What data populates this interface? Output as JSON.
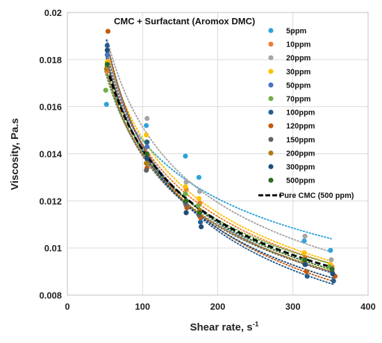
{
  "chart_data": {
    "type": "scatter",
    "title": "CMC + Surfactant (Aromox DMC)",
    "xlabel": "Shear rate, s",
    "xlabel_sup": "-1",
    "ylabel": "Viscosity, Pa.s",
    "xlim": [
      0,
      400
    ],
    "ylim": [
      0.008,
      0.02
    ],
    "x_ticks": [
      "0",
      "100",
      "200",
      "300",
      "400"
    ],
    "y_ticks": [
      "0.008",
      "0.01",
      "0.012",
      "0.014",
      "0.016",
      "0.018",
      "0.02"
    ],
    "grid": true,
    "legend_position": "right",
    "trendline": "dotted power fit per series",
    "series": [
      {
        "name": "5ppm",
        "color": "#2ea3d9",
        "x": [
          52,
          105,
          157,
          175,
          315,
          350
        ],
        "y": [
          0.0161,
          0.0152,
          0.0139,
          0.013,
          0.0103,
          0.0099
        ]
      },
      {
        "name": "10ppm",
        "color": "#ed7d31",
        "x": [
          53,
          106,
          158,
          176,
          316,
          352
        ],
        "y": [
          0.0175,
          0.0145,
          0.0125,
          0.0119,
          0.0096,
          0.0092
        ]
      },
      {
        "name": "20ppm",
        "color": "#a5a5a5",
        "x": [
          54,
          106,
          158,
          176,
          316,
          351
        ],
        "y": [
          0.0183,
          0.0155,
          0.0128,
          0.0124,
          0.0105,
          0.0095
        ]
      },
      {
        "name": "30ppm",
        "color": "#ffc000",
        "x": [
          53,
          105,
          157,
          175,
          315,
          350
        ],
        "y": [
          0.0179,
          0.0148,
          0.0126,
          0.0121,
          0.0098,
          0.0093
        ]
      },
      {
        "name": "50ppm",
        "color": "#4472c4",
        "x": [
          53,
          106,
          158,
          176,
          317,
          352
        ],
        "y": [
          0.0182,
          0.0143,
          0.0118,
          0.0116,
          0.0093,
          0.009
        ]
      },
      {
        "name": "70ppm",
        "color": "#70ad47",
        "x": [
          51,
          105,
          157,
          174,
          314,
          349
        ],
        "y": [
          0.0167,
          0.0145,
          0.0123,
          0.0118,
          0.0095,
          0.0092
        ]
      },
      {
        "name": "100ppm",
        "color": "#255e91",
        "x": [
          53,
          106,
          158,
          177,
          319,
          354
        ],
        "y": [
          0.0186,
          0.0145,
          0.0115,
          0.0111,
          0.0088,
          0.0086
        ]
      },
      {
        "name": "120ppm",
        "color": "#c55a11",
        "x": [
          54,
          106,
          159,
          177,
          318,
          356
        ],
        "y": [
          0.0192,
          0.0134,
          0.0117,
          0.0113,
          0.009,
          0.0088
        ]
      },
      {
        "name": "150ppm",
        "color": "#636363",
        "x": [
          53,
          105,
          157,
          175,
          316,
          352
        ],
        "y": [
          0.0177,
          0.0133,
          0.0119,
          0.0114,
          0.0094,
          0.009
        ]
      },
      {
        "name": "200ppm",
        "color": "#b07d12",
        "x": [
          52,
          105,
          158,
          176,
          316,
          353
        ],
        "y": [
          0.0176,
          0.0136,
          0.012,
          0.0116,
          0.0094,
          0.0089
        ]
      },
      {
        "name": "300ppm",
        "color": "#1f4e79",
        "x": [
          53,
          106,
          158,
          178,
          316,
          353
        ],
        "y": [
          0.0184,
          0.0138,
          0.0115,
          0.0109,
          0.0093,
          0.0089
        ]
      },
      {
        "name": "500ppm",
        "color": "#2f6b24",
        "x": [
          53,
          106,
          158,
          176,
          316,
          352
        ],
        "y": [
          0.0178,
          0.014,
          0.012,
          0.0115,
          0.0095,
          0.0091
        ]
      }
    ],
    "reference_series": {
      "name": "Pure CMC (500 ppm)",
      "color": "#000000",
      "style": "dashed",
      "x": [
        53,
        105,
        160,
        200,
        250,
        300,
        350
      ],
      "y": [
        0.018,
        0.0139,
        0.0118,
        0.0109,
        0.0102,
        0.0098,
        0.0095
      ]
    }
  }
}
